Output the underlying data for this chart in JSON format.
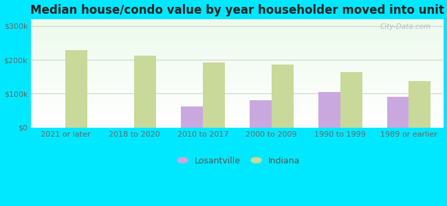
{
  "title": "Median house/condo value by year householder moved into unit",
  "categories": [
    "2021 or later",
    "2018 to 2020",
    "2010 to 2017",
    "2000 to 2009",
    "1990 to 1999",
    "1989 or earlier"
  ],
  "losantville_values": [
    0,
    0,
    62000,
    80000,
    105000,
    90000
  ],
  "indiana_values": [
    228000,
    212000,
    193000,
    186000,
    163000,
    138000
  ],
  "losantville_color": "#c9a8e0",
  "indiana_color": "#c8d99a",
  "background_outer": "#00e8ff",
  "background_inner_top": "#edfaed",
  "background_inner_bottom": "#ffffff",
  "ylabel_ticks": [
    0,
    100000,
    200000,
    300000
  ],
  "ylabel_labels": [
    "$0",
    "$100k",
    "$200k",
    "$300k"
  ],
  "ylim": [
    0,
    320000
  ],
  "legend_losantville": "Losantville",
  "legend_indiana": "Indiana",
  "watermark": "City-Data.com",
  "bar_width": 0.32,
  "title_fontsize": 12,
  "tick_fontsize": 8,
  "legend_fontsize": 9
}
